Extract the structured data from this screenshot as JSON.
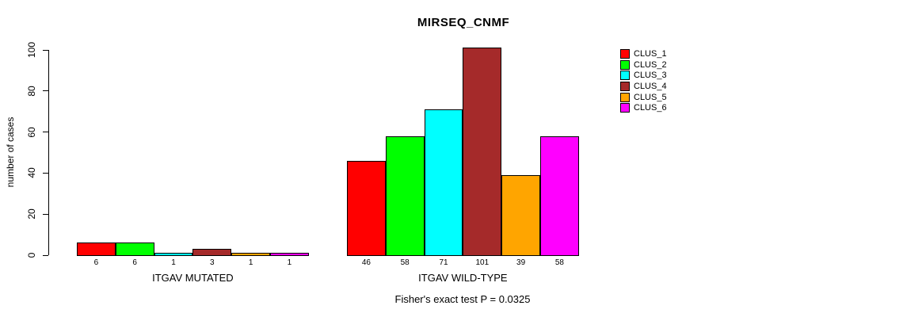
{
  "chart_data": {
    "type": "bar",
    "title": "MIRSEQ_CNMF",
    "ylabel": "number of cases",
    "xlabel": "",
    "ylim": [
      0,
      100
    ],
    "yticks": [
      0,
      20,
      40,
      60,
      80,
      100
    ],
    "grid": false,
    "legend_position": "top-right",
    "series_labels": [
      "CLUS_1",
      "CLUS_2",
      "CLUS_3",
      "CLUS_4",
      "CLUS_5",
      "CLUS_6"
    ],
    "colors": [
      "#FF0000",
      "#00FF00",
      "#00FFFF",
      "#A52A2A",
      "#FFA500",
      "#FF00FF"
    ],
    "groups": [
      {
        "label": "ITGAV MUTATED",
        "values": [
          6,
          6,
          1,
          3,
          1,
          1
        ]
      },
      {
        "label": "ITGAV WILD-TYPE",
        "values": [
          46,
          58,
          71,
          101,
          39,
          58
        ]
      }
    ],
    "annotation": "Fisher's exact test P = 0.0325"
  },
  "legend": {
    "items": [
      {
        "label": "CLUS_1",
        "color": "#FF0000"
      },
      {
        "label": "CLUS_2",
        "color": "#00FF00"
      },
      {
        "label": "CLUS_3",
        "color": "#00FFFF"
      },
      {
        "label": "CLUS_4",
        "color": "#A52A2A"
      },
      {
        "label": "CLUS_5",
        "color": "#FFA500"
      },
      {
        "label": "CLUS_6",
        "color": "#FF00FF"
      }
    ]
  }
}
